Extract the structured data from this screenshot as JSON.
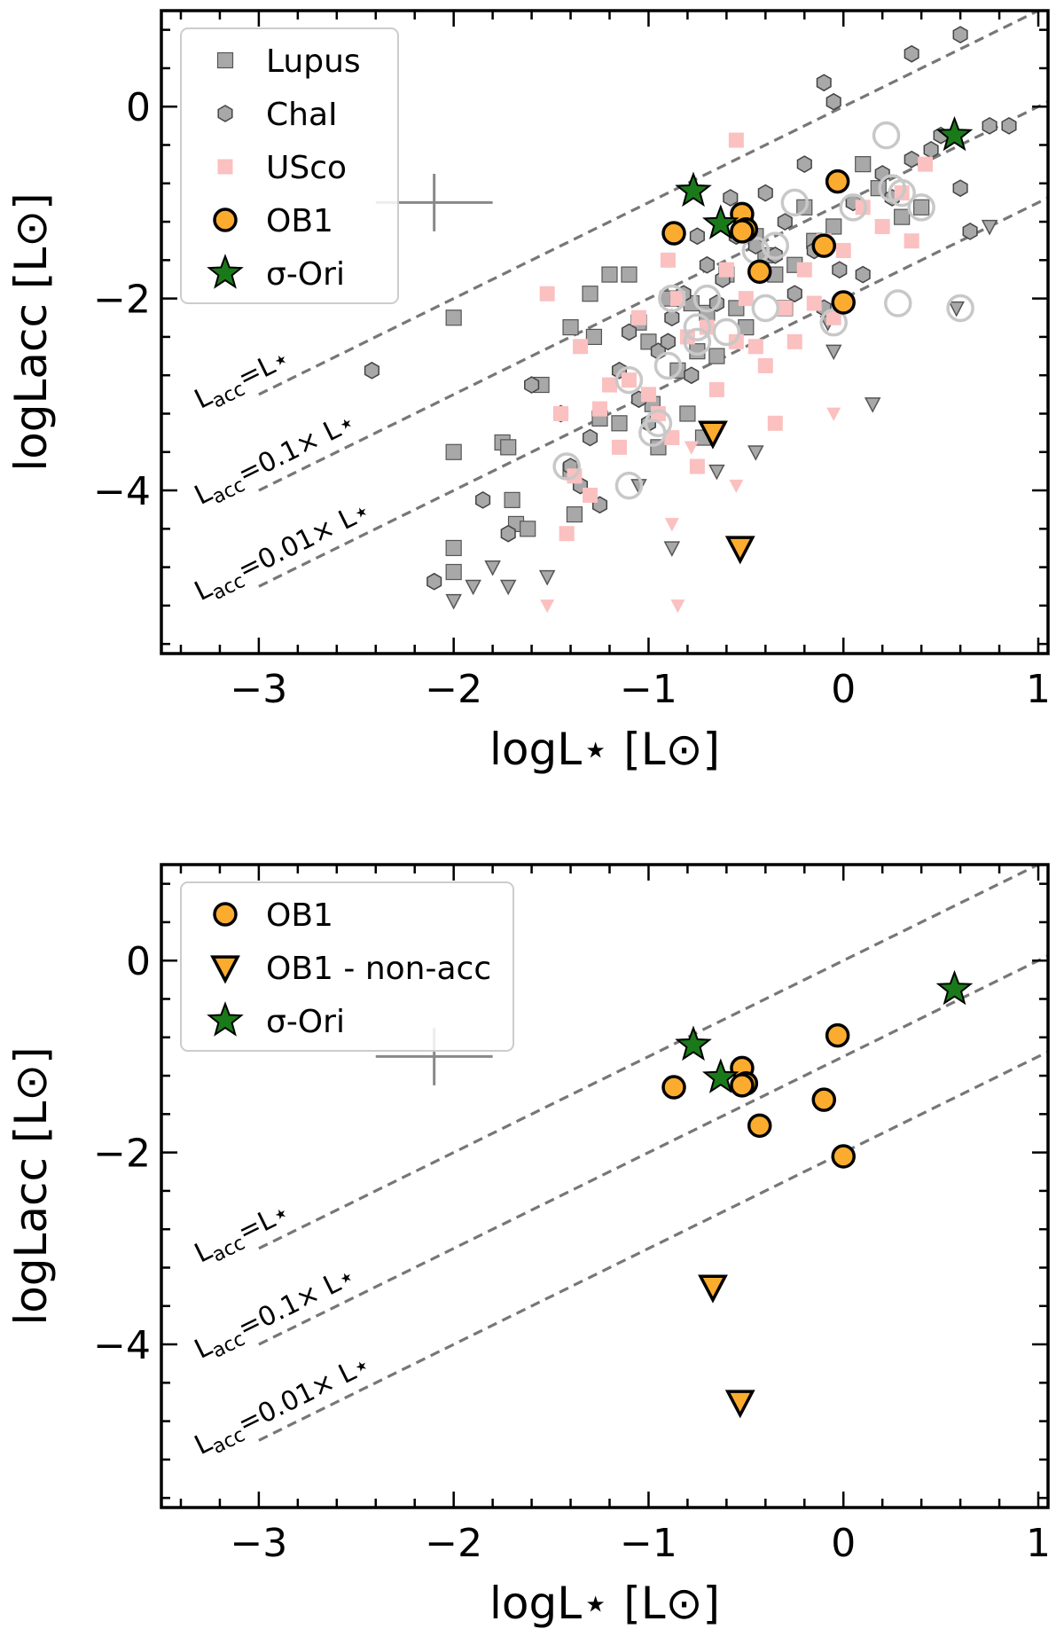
{
  "chart_data": [
    {
      "type": "scatter",
      "xlabel": "logL⋆ [L⊙]",
      "ylabel": "logLacc [L⊙]",
      "xlim": [
        -3.5,
        1.05
      ],
      "ylim": [
        -5.7,
        1.0
      ],
      "xticks": [
        -3,
        -2,
        -1,
        0,
        1
      ],
      "xtick_labels": [
        "−3",
        "−2",
        "−1",
        "0",
        "1"
      ],
      "yticks": [
        -4,
        -2,
        0
      ],
      "ytick_labels": [
        "−4",
        "−2",
        "0"
      ],
      "legend_position": "top-left",
      "reference_lines": [
        {
          "label_base": "L",
          "label_sub": "acc",
          "label_rest": "=L⋆",
          "offset": 0
        },
        {
          "label_base": "L",
          "label_sub": "acc",
          "label_rest": "=0.1× L⋆",
          "offset": -1
        },
        {
          "label_base": "L",
          "label_sub": "acc",
          "label_rest": "=0.01× L⋆",
          "offset": -2
        }
      ],
      "error_bar": {
        "x": -2.1,
        "y": -1.0,
        "xerr": 0.3,
        "yerr": 0.2
      },
      "series": [
        {
          "name": "Lupus",
          "marker": "square",
          "color": "#a8a8a8",
          "points": [
            [
              -2.0,
              -2.2
            ],
            [
              -2.0,
              -3.6
            ],
            [
              -2.0,
              -4.6
            ],
            [
              -2.0,
              -4.85
            ],
            [
              -1.75,
              -3.5
            ],
            [
              -1.72,
              -3.55
            ],
            [
              -1.7,
              -4.1
            ],
            [
              -1.68,
              -4.35
            ],
            [
              -1.62,
              -4.4
            ],
            [
              -1.55,
              -2.9
            ],
            [
              -1.4,
              -2.3
            ],
            [
              -1.4,
              -3.8
            ],
            [
              -1.38,
              -4.25
            ],
            [
              -1.3,
              -1.95
            ],
            [
              -1.28,
              -2.4
            ],
            [
              -1.25,
              -3.25
            ],
            [
              -1.2,
              -1.75
            ],
            [
              -1.15,
              -3.3
            ],
            [
              -1.1,
              -1.75
            ],
            [
              -1.05,
              -2.25
            ],
            [
              -1.0,
              -2.45
            ],
            [
              -0.98,
              -3.1
            ],
            [
              -0.95,
              -3.55
            ],
            [
              -0.9,
              -2.0
            ],
            [
              -0.85,
              -2.75
            ],
            [
              -0.8,
              -3.2
            ],
            [
              -0.78,
              -2.05
            ],
            [
              -0.75,
              -2.55
            ],
            [
              -0.72,
              -3.45
            ],
            [
              -0.7,
              -2.15
            ],
            [
              -0.65,
              -2.6
            ],
            [
              -0.6,
              -1.75
            ],
            [
              -0.55,
              -2.1
            ],
            [
              -0.5,
              -2.3
            ],
            [
              -0.45,
              -1.35
            ],
            [
              -0.4,
              -1.55
            ],
            [
              -0.35,
              -1.75
            ],
            [
              -0.3,
              -2.1
            ],
            [
              -0.25,
              -1.65
            ],
            [
              -0.2,
              -1.05
            ],
            [
              -0.15,
              -1.4
            ],
            [
              -0.05,
              -1.25
            ],
            [
              0.1,
              -0.6
            ],
            [
              0.18,
              -0.85
            ],
            [
              0.3,
              -1.15
            ],
            [
              0.4,
              -1.05
            ]
          ]
        },
        {
          "name": "ChaI",
          "marker": "hexagon",
          "color": "#a8a8a8",
          "points": [
            [
              -2.42,
              -2.75
            ],
            [
              -2.1,
              -4.95
            ],
            [
              -1.85,
              -4.1
            ],
            [
              -1.72,
              -4.45
            ],
            [
              -1.6,
              -2.9
            ],
            [
              -1.45,
              -3.2
            ],
            [
              -1.4,
              -3.75
            ],
            [
              -1.35,
              -3.95
            ],
            [
              -1.3,
              -3.45
            ],
            [
              -1.25,
              -4.15
            ],
            [
              -1.15,
              -2.75
            ],
            [
              -1.1,
              -2.35
            ],
            [
              -1.05,
              -3.05
            ],
            [
              -1.0,
              -3.3
            ],
            [
              -0.95,
              -2.55
            ],
            [
              -0.9,
              -2.45
            ],
            [
              -0.88,
              -2.2
            ],
            [
              -0.85,
              -2.0
            ],
            [
              -0.82,
              -1.95
            ],
            [
              -0.78,
              -2.8
            ],
            [
              -0.75,
              -1.35
            ],
            [
              -0.7,
              -1.65
            ],
            [
              -0.65,
              -2.05
            ],
            [
              -0.62,
              -1.8
            ],
            [
              -0.58,
              -0.95
            ],
            [
              -0.55,
              -1.35
            ],
            [
              -0.5,
              -1.15
            ],
            [
              -0.45,
              -1.45
            ],
            [
              -0.4,
              -0.9
            ],
            [
              -0.35,
              -1.55
            ],
            [
              -0.3,
              -1.2
            ],
            [
              -0.25,
              -1.95
            ],
            [
              -0.2,
              -0.6
            ],
            [
              -0.15,
              -1.5
            ],
            [
              -0.1,
              -2.1
            ],
            [
              -0.05,
              0.05
            ],
            [
              -0.02,
              -1.7
            ],
            [
              0.05,
              -1.0
            ],
            [
              0.1,
              -1.75
            ],
            [
              0.2,
              -0.7
            ],
            [
              0.25,
              -0.95
            ],
            [
              0.35,
              -0.55
            ],
            [
              0.45,
              -0.45
            ],
            [
              0.5,
              -0.3
            ],
            [
              0.6,
              -0.85
            ],
            [
              0.65,
              -1.3
            ],
            [
              0.75,
              -0.2
            ],
            [
              0.85,
              -0.2
            ],
            [
              0.35,
              0.55
            ],
            [
              0.6,
              0.75
            ],
            [
              -0.1,
              0.25
            ]
          ]
        },
        {
          "name": "",
          "marker": "triangle-down",
          "color": "#a8a8a8",
          "points": [
            [
              -2.0,
              -5.15
            ],
            [
              -1.9,
              -5.0
            ],
            [
              -1.8,
              -4.8
            ],
            [
              -1.72,
              -5.0
            ],
            [
              -1.52,
              -4.9
            ],
            [
              -1.05,
              -3.95
            ],
            [
              -0.88,
              -4.6
            ],
            [
              -0.65,
              -3.8
            ],
            [
              -0.45,
              -3.6
            ],
            [
              -0.05,
              -2.55
            ],
            [
              -0.08,
              -2.25
            ],
            [
              0.15,
              -3.1
            ],
            [
              0.58,
              -2.1
            ],
            [
              0.75,
              -1.25
            ]
          ]
        },
        {
          "name": "USco",
          "marker": "square",
          "color": "#fbc0c0",
          "points": [
            [
              -1.52,
              -1.95
            ],
            [
              -1.45,
              -3.2
            ],
            [
              -1.42,
              -4.45
            ],
            [
              -1.38,
              -3.85
            ],
            [
              -1.35,
              -2.5
            ],
            [
              -1.3,
              -4.05
            ],
            [
              -1.25,
              -3.15
            ],
            [
              -1.2,
              -2.9
            ],
            [
              -1.15,
              -3.55
            ],
            [
              -1.1,
              -2.85
            ],
            [
              -1.05,
              -2.2
            ],
            [
              -1.0,
              -3.0
            ],
            [
              -0.95,
              -3.2
            ],
            [
              -0.9,
              -1.6
            ],
            [
              -0.88,
              -3.45
            ],
            [
              -0.85,
              -2.0
            ],
            [
              -0.8,
              -2.4
            ],
            [
              -0.75,
              -3.75
            ],
            [
              -0.7,
              -2.3
            ],
            [
              -0.65,
              -2.95
            ],
            [
              -0.6,
              -1.7
            ],
            [
              -0.55,
              -2.45
            ],
            [
              -0.5,
              -2.0
            ],
            [
              -0.45,
              -2.5
            ],
            [
              -0.4,
              -2.7
            ],
            [
              -0.35,
              -3.3
            ],
            [
              -0.3,
              -2.1
            ],
            [
              -0.25,
              -2.45
            ],
            [
              -0.2,
              -1.7
            ],
            [
              -0.15,
              -2.05
            ],
            [
              -0.1,
              -1.4
            ],
            [
              -0.05,
              -2.2
            ],
            [
              0.0,
              -1.5
            ],
            [
              0.1,
              -1.05
            ],
            [
              0.2,
              -1.25
            ],
            [
              0.3,
              -0.9
            ],
            [
              0.35,
              -1.4
            ],
            [
              0.42,
              -0.6
            ],
            [
              -0.55,
              -0.35
            ]
          ]
        },
        {
          "name": "",
          "marker": "triangle-down",
          "color": "#fbc0c0",
          "points": [
            [
              -1.52,
              -5.2
            ],
            [
              -0.88,
              -4.35
            ],
            [
              -0.85,
              -5.2
            ],
            [
              -0.78,
              -3.55
            ],
            [
              -0.55,
              -3.95
            ],
            [
              -0.05,
              -3.2
            ]
          ]
        },
        {
          "name": "",
          "marker": "ring",
          "color": "#c8c8c8",
          "points": [
            [
              -1.42,
              -3.75
            ],
            [
              -1.1,
              -2.85
            ],
            [
              -1.1,
              -3.95
            ],
            [
              -0.98,
              -3.4
            ],
            [
              -0.95,
              -3.3
            ],
            [
              -0.9,
              -2.7
            ],
            [
              -0.88,
              -2.0
            ],
            [
              -0.75,
              -2.3
            ],
            [
              -0.75,
              -2.45
            ],
            [
              -0.7,
              -2.0
            ],
            [
              -0.6,
              -2.35
            ],
            [
              -0.45,
              -1.5
            ],
            [
              -0.4,
              -2.1
            ],
            [
              -0.35,
              -1.45
            ],
            [
              -0.25,
              -1.0
            ],
            [
              -0.05,
              -2.25
            ],
            [
              0.05,
              -1.05
            ],
            [
              0.22,
              -0.3
            ],
            [
              0.25,
              -0.85
            ],
            [
              0.3,
              -0.9
            ],
            [
              0.4,
              -1.05
            ],
            [
              0.28,
              -2.05
            ],
            [
              0.6,
              -2.1
            ]
          ]
        },
        {
          "name": "OB1",
          "marker": "circle",
          "color": "#fbac2e",
          "points": [
            [
              -0.87,
              -1.32
            ],
            [
              -0.52,
              -1.12
            ],
            [
              -0.5,
              -1.28
            ],
            [
              -0.52,
              -1.3
            ],
            [
              -0.43,
              -1.72
            ],
            [
              -0.1,
              -1.45
            ],
            [
              -0.03,
              -0.78
            ],
            [
              0.0,
              -2.04
            ]
          ]
        },
        {
          "name": "",
          "marker": "triangle-down",
          "color": "#fbac2e",
          "points": [
            [
              -0.67,
              -3.4
            ],
            [
              -0.53,
              -4.6
            ]
          ]
        },
        {
          "name": "σ-Ori",
          "marker": "star",
          "color": "#1a7a1a",
          "points": [
            [
              -0.77,
              -0.88
            ],
            [
              -0.63,
              -1.22
            ],
            [
              0.57,
              -0.3
            ]
          ]
        }
      ],
      "legend": [
        {
          "label": "Lupus",
          "marker": "square",
          "color": "#a8a8a8"
        },
        {
          "label": "ChaI",
          "marker": "hexagon",
          "color": "#a8a8a8"
        },
        {
          "label": "USco",
          "marker": "square",
          "color": "#fbc0c0"
        },
        {
          "label": "OB1",
          "marker": "circle",
          "color": "#fbac2e"
        },
        {
          "label": "σ-Ori",
          "marker": "star",
          "color": "#1a7a1a"
        }
      ]
    },
    {
      "type": "scatter",
      "xlabel": "logL⋆ [L⊙]",
      "ylabel": "logLacc [L⊙]",
      "xlim": [
        -3.5,
        1.05
      ],
      "ylim": [
        -5.7,
        1.0
      ],
      "xticks": [
        -3,
        -2,
        -1,
        0,
        1
      ],
      "xtick_labels": [
        "−3",
        "−2",
        "−1",
        "0",
        "1"
      ],
      "yticks": [
        -4,
        -2,
        0
      ],
      "ytick_labels": [
        "−4",
        "−2",
        "0"
      ],
      "legend_position": "top-left",
      "reference_lines": [
        {
          "label_base": "L",
          "label_sub": "acc",
          "label_rest": "=L⋆",
          "offset": 0
        },
        {
          "label_base": "L",
          "label_sub": "acc",
          "label_rest": "=0.1× L⋆",
          "offset": -1
        },
        {
          "label_base": "L",
          "label_sub": "acc",
          "label_rest": "=0.01× L⋆",
          "offset": -2
        }
      ],
      "error_bar": {
        "x": -2.1,
        "y": -1.0,
        "xerr": 0.3,
        "yerr": 0.2
      },
      "series": [
        {
          "name": "OB1",
          "marker": "circle",
          "color": "#fbac2e",
          "points": [
            [
              -0.87,
              -1.32
            ],
            [
              -0.52,
              -1.12
            ],
            [
              -0.5,
              -1.28
            ],
            [
              -0.52,
              -1.3
            ],
            [
              -0.43,
              -1.72
            ],
            [
              -0.1,
              -1.45
            ],
            [
              -0.03,
              -0.78
            ],
            [
              0.0,
              -2.04
            ]
          ]
        },
        {
          "name": "OB1 - non-acc",
          "marker": "triangle-down",
          "color": "#fbac2e",
          "points": [
            [
              -0.67,
              -3.4
            ],
            [
              -0.53,
              -4.6
            ]
          ]
        },
        {
          "name": "σ-Ori",
          "marker": "star",
          "color": "#1a7a1a",
          "points": [
            [
              -0.77,
              -0.88
            ],
            [
              -0.63,
              -1.22
            ],
            [
              0.57,
              -0.3
            ]
          ]
        }
      ],
      "legend": [
        {
          "label": "OB1",
          "marker": "circle",
          "color": "#fbac2e"
        },
        {
          "label": "OB1 - non-acc",
          "marker": "triangle-down",
          "color": "#fbac2e"
        },
        {
          "label": "σ-Ori",
          "marker": "star",
          "color": "#1a7a1a"
        }
      ]
    }
  ]
}
